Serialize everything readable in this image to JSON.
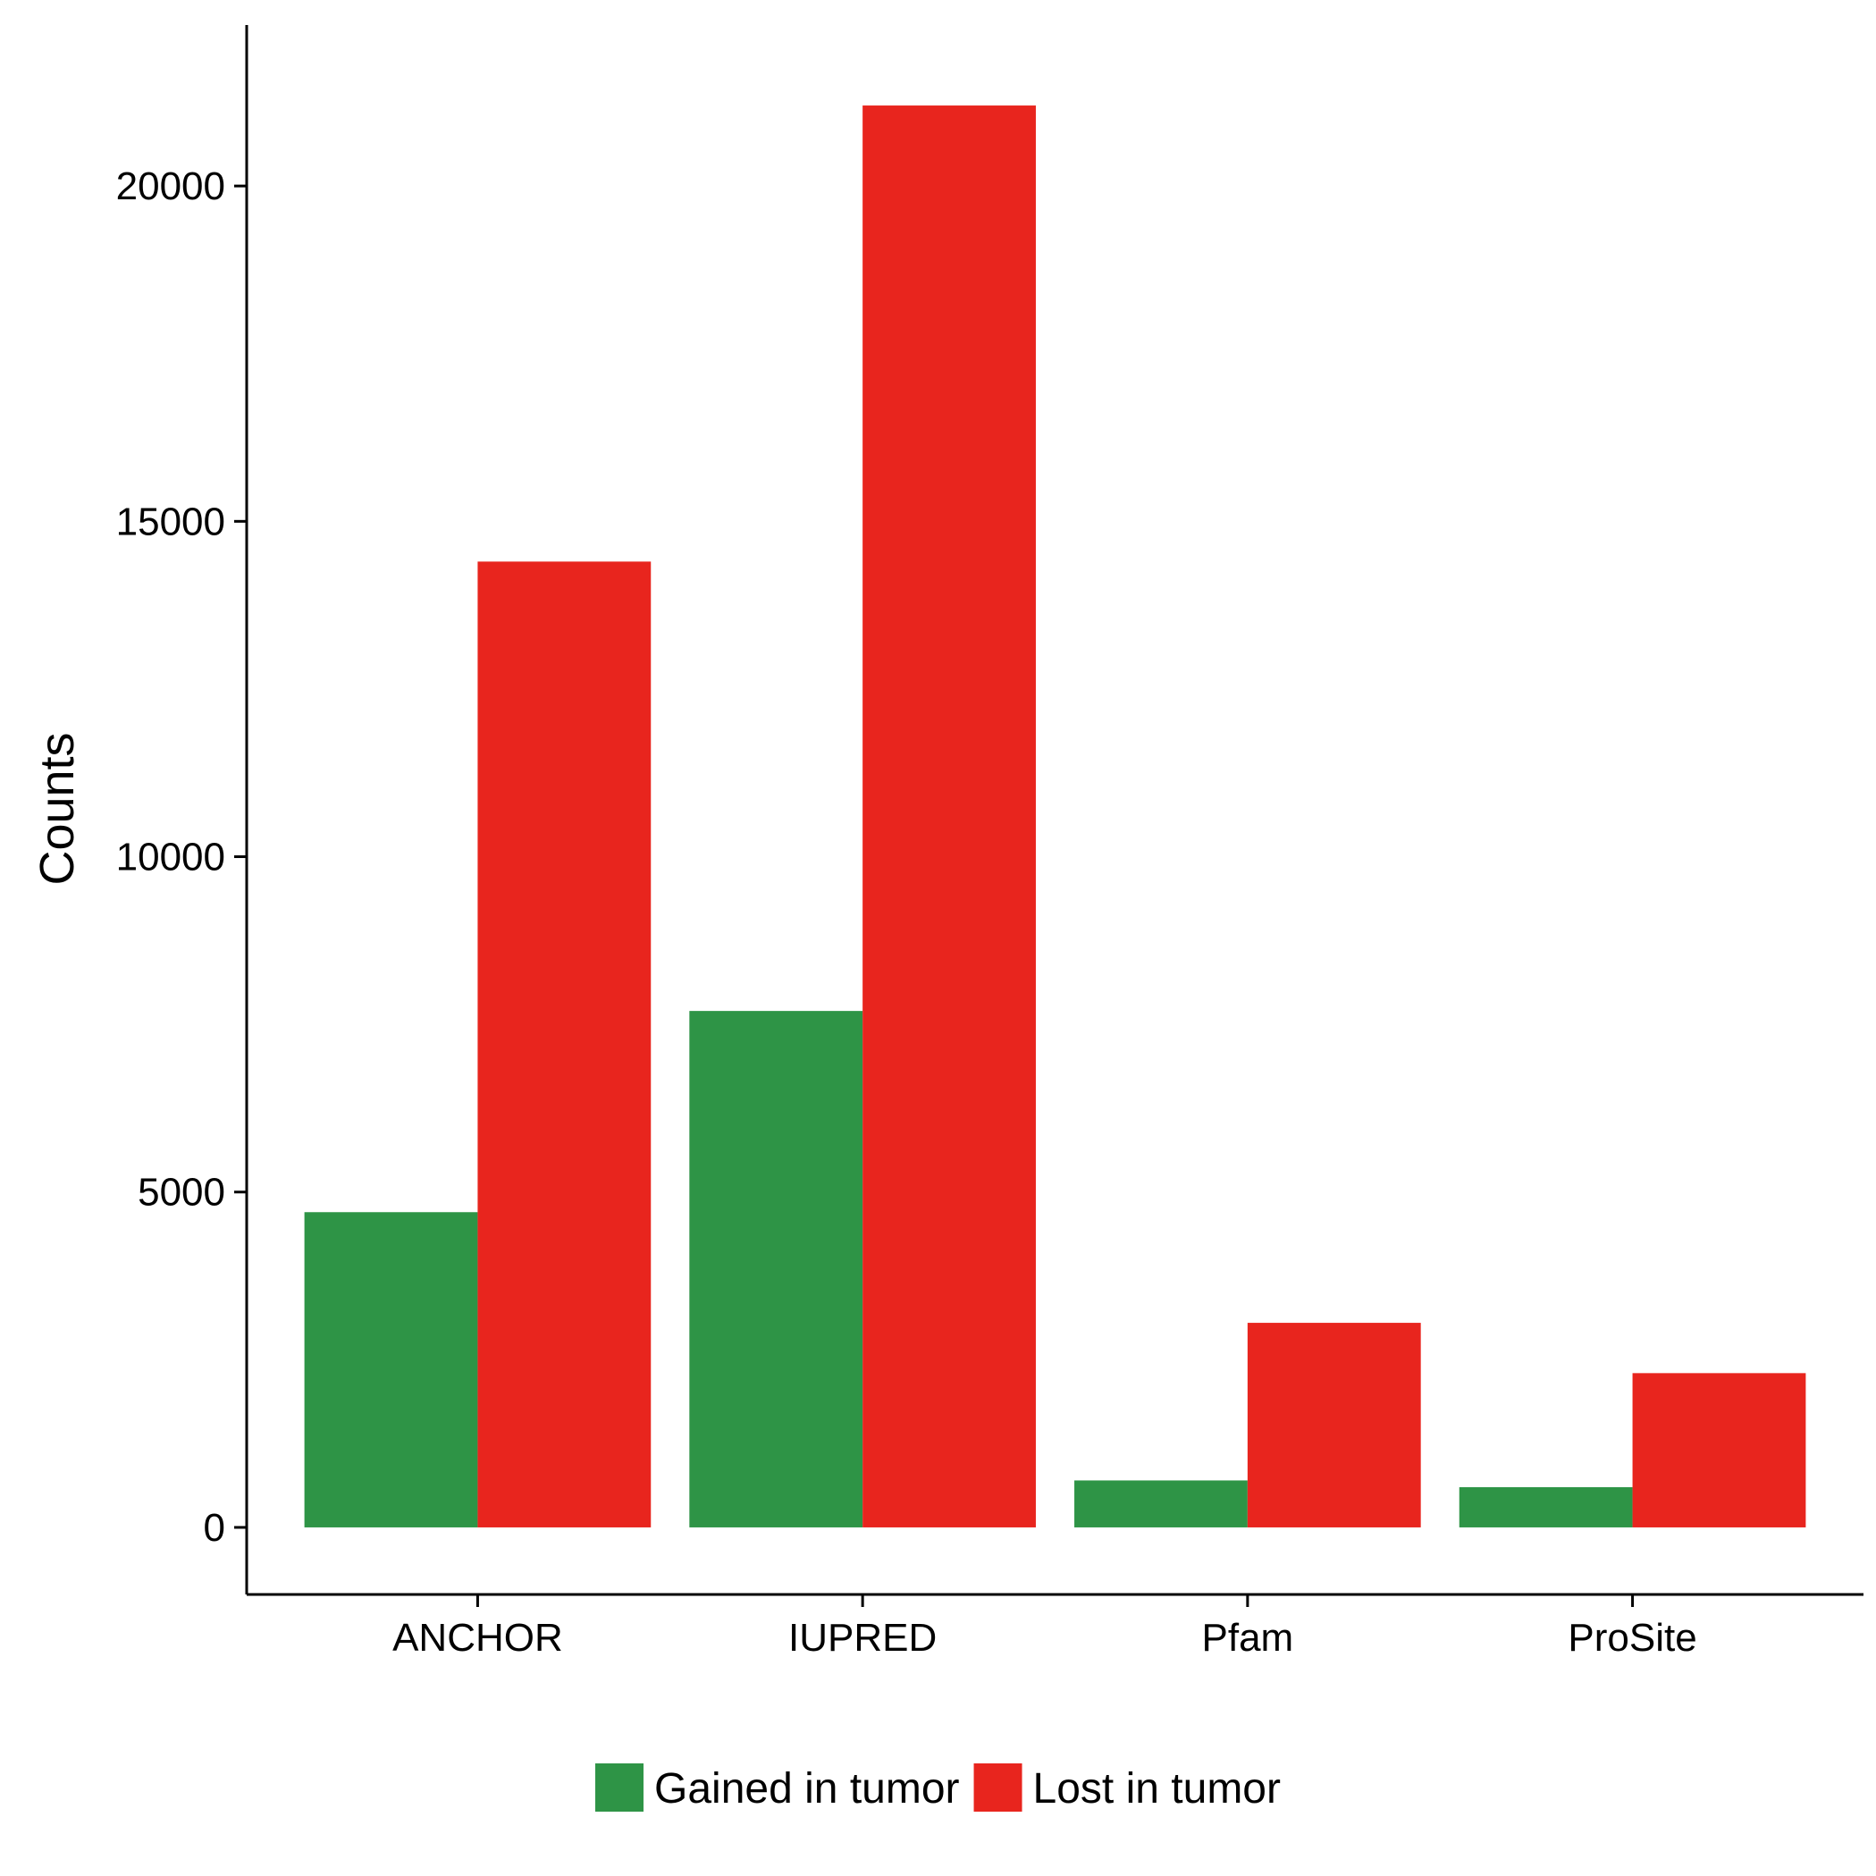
{
  "chart_data": {
    "type": "bar",
    "title": "",
    "xlabel": "",
    "ylabel": "Counts",
    "categories": [
      "ANCHOR",
      "IUPRED",
      "Pfam",
      "ProSite"
    ],
    "series": [
      {
        "name": "Gained in tumor",
        "color": "#2e9446",
        "values": [
          4700,
          7700,
          700,
          600
        ]
      },
      {
        "name": "Lost in tumor",
        "color": "#e8251e",
        "values": [
          14400,
          21200,
          3050,
          2300
        ]
      }
    ],
    "yticks": [
      0,
      5000,
      10000,
      15000,
      20000
    ],
    "ylim": [
      -1000,
      22400
    ],
    "legend_position": "bottom",
    "grid": false
  }
}
